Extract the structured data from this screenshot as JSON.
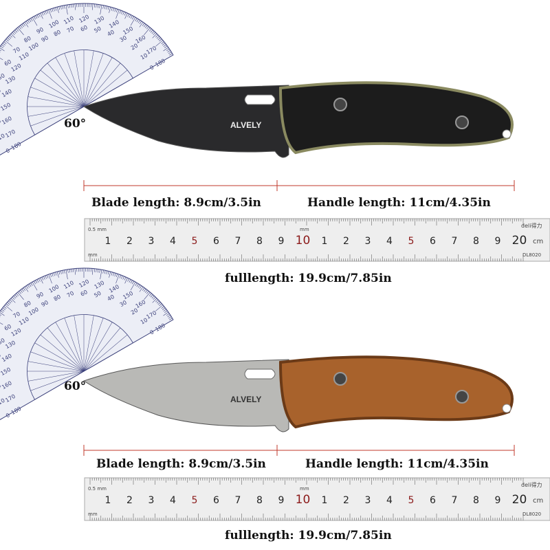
{
  "panels": [
    {
      "angle_label": "60°",
      "brand": "ALVELY",
      "blade_label": "Blade length: 8.9cm/3.5in",
      "handle_label": "Handle length: 11cm/4.35in",
      "full_label": "fulllength: 19.9cm/7.85in",
      "blade_color": "#2a2a2c",
      "handle_color": "#1c1c1c",
      "liner_color": "#8a8a60"
    },
    {
      "angle_label": "60°",
      "brand": "ALVELY",
      "blade_label": "Blade length: 8.9cm/3.5in",
      "handle_label": "Handle length: 11cm/4.35in",
      "full_label": "fulllength: 19.9cm/7.85in",
      "blade_color": "#b9b9b6",
      "handle_color": "#a8622c",
      "liner_color": "#6b3a17"
    }
  ],
  "ruler": {
    "numbers": [
      "1",
      "2",
      "3",
      "4",
      "5",
      "6",
      "7",
      "8",
      "9",
      "10",
      "1",
      "2",
      "3",
      "4",
      "5",
      "6",
      "7",
      "8",
      "9",
      "20"
    ],
    "unit": "cm",
    "top_scale": "0.5 mm",
    "mm_label": "mm",
    "brand": "deli得力",
    "model": "DL8020",
    "accent_color": "#8b1a1a"
  },
  "protractor": {
    "labels": [
      "0",
      "10",
      "20",
      "30",
      "40",
      "50",
      "60",
      "70",
      "80",
      "90",
      "100",
      "110",
      "120",
      "130",
      "140",
      "150",
      "160",
      "170",
      "180"
    ],
    "color": "#3a3f7a"
  },
  "measure_line_color": "#c0392b"
}
